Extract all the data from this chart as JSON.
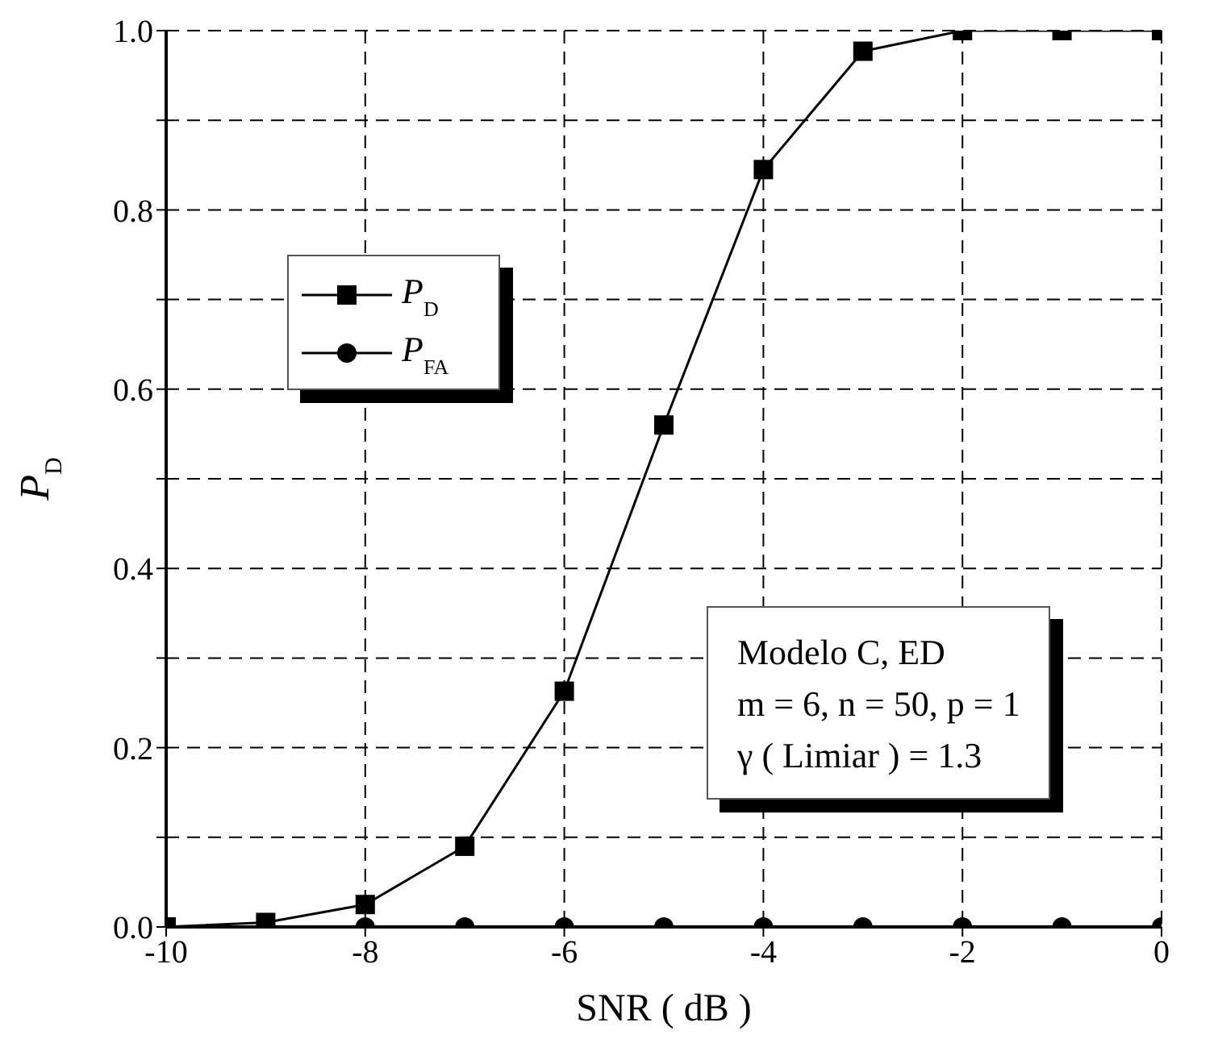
{
  "chart_data": {
    "type": "line",
    "xlabel": "SNR ( dB )",
    "ylabel": "P$_{D}$",
    "x": [
      -10,
      -9,
      -8,
      -7,
      -6,
      -5,
      -4,
      -3,
      -2,
      -1,
      0
    ],
    "series": [
      {
        "name": "P$_{D}$",
        "color": "#000000",
        "marker": "square",
        "values": [
          0.0,
          0.005,
          0.025,
          0.09,
          0.263,
          0.56,
          0.845,
          0.977,
          1.0,
          1.0,
          1.0
        ]
      },
      {
        "name": "P$_{FA}$",
        "color": "#000000",
        "marker": "circle",
        "values": [
          0,
          0,
          0,
          0,
          0,
          0,
          0,
          0,
          0,
          0,
          0
        ]
      }
    ],
    "xlim": [
      -10,
      0
    ],
    "xticks": [
      -10,
      -8,
      -6,
      -4,
      -2,
      0
    ],
    "ylim": [
      0,
      1.0
    ],
    "yticks": [
      {
        "value": 0,
        "label": "0.0"
      },
      {
        "value": 0.1,
        "label": null
      },
      {
        "value": 0.2,
        "label": "0.2"
      },
      {
        "value": 0.3,
        "label": null
      },
      {
        "value": 0.4,
        "label": "0.4"
      },
      {
        "value": 0.5,
        "label": null
      },
      {
        "value": 0.6,
        "label": "0.6"
      },
      {
        "value": 0.7,
        "label": null
      },
      {
        "value": 0.8,
        "label": "0.8"
      },
      {
        "value": 0.9,
        "label": null
      },
      {
        "value": 1.0,
        "label": "1.0"
      }
    ],
    "grid": true,
    "legend": "top left",
    "line_style": "solid",
    "annotations": [
      "Modelo C, ED",
      "m = 6, n = 50, p = 1",
      "γ ( Limiar ) = 1.3"
    ]
  }
}
